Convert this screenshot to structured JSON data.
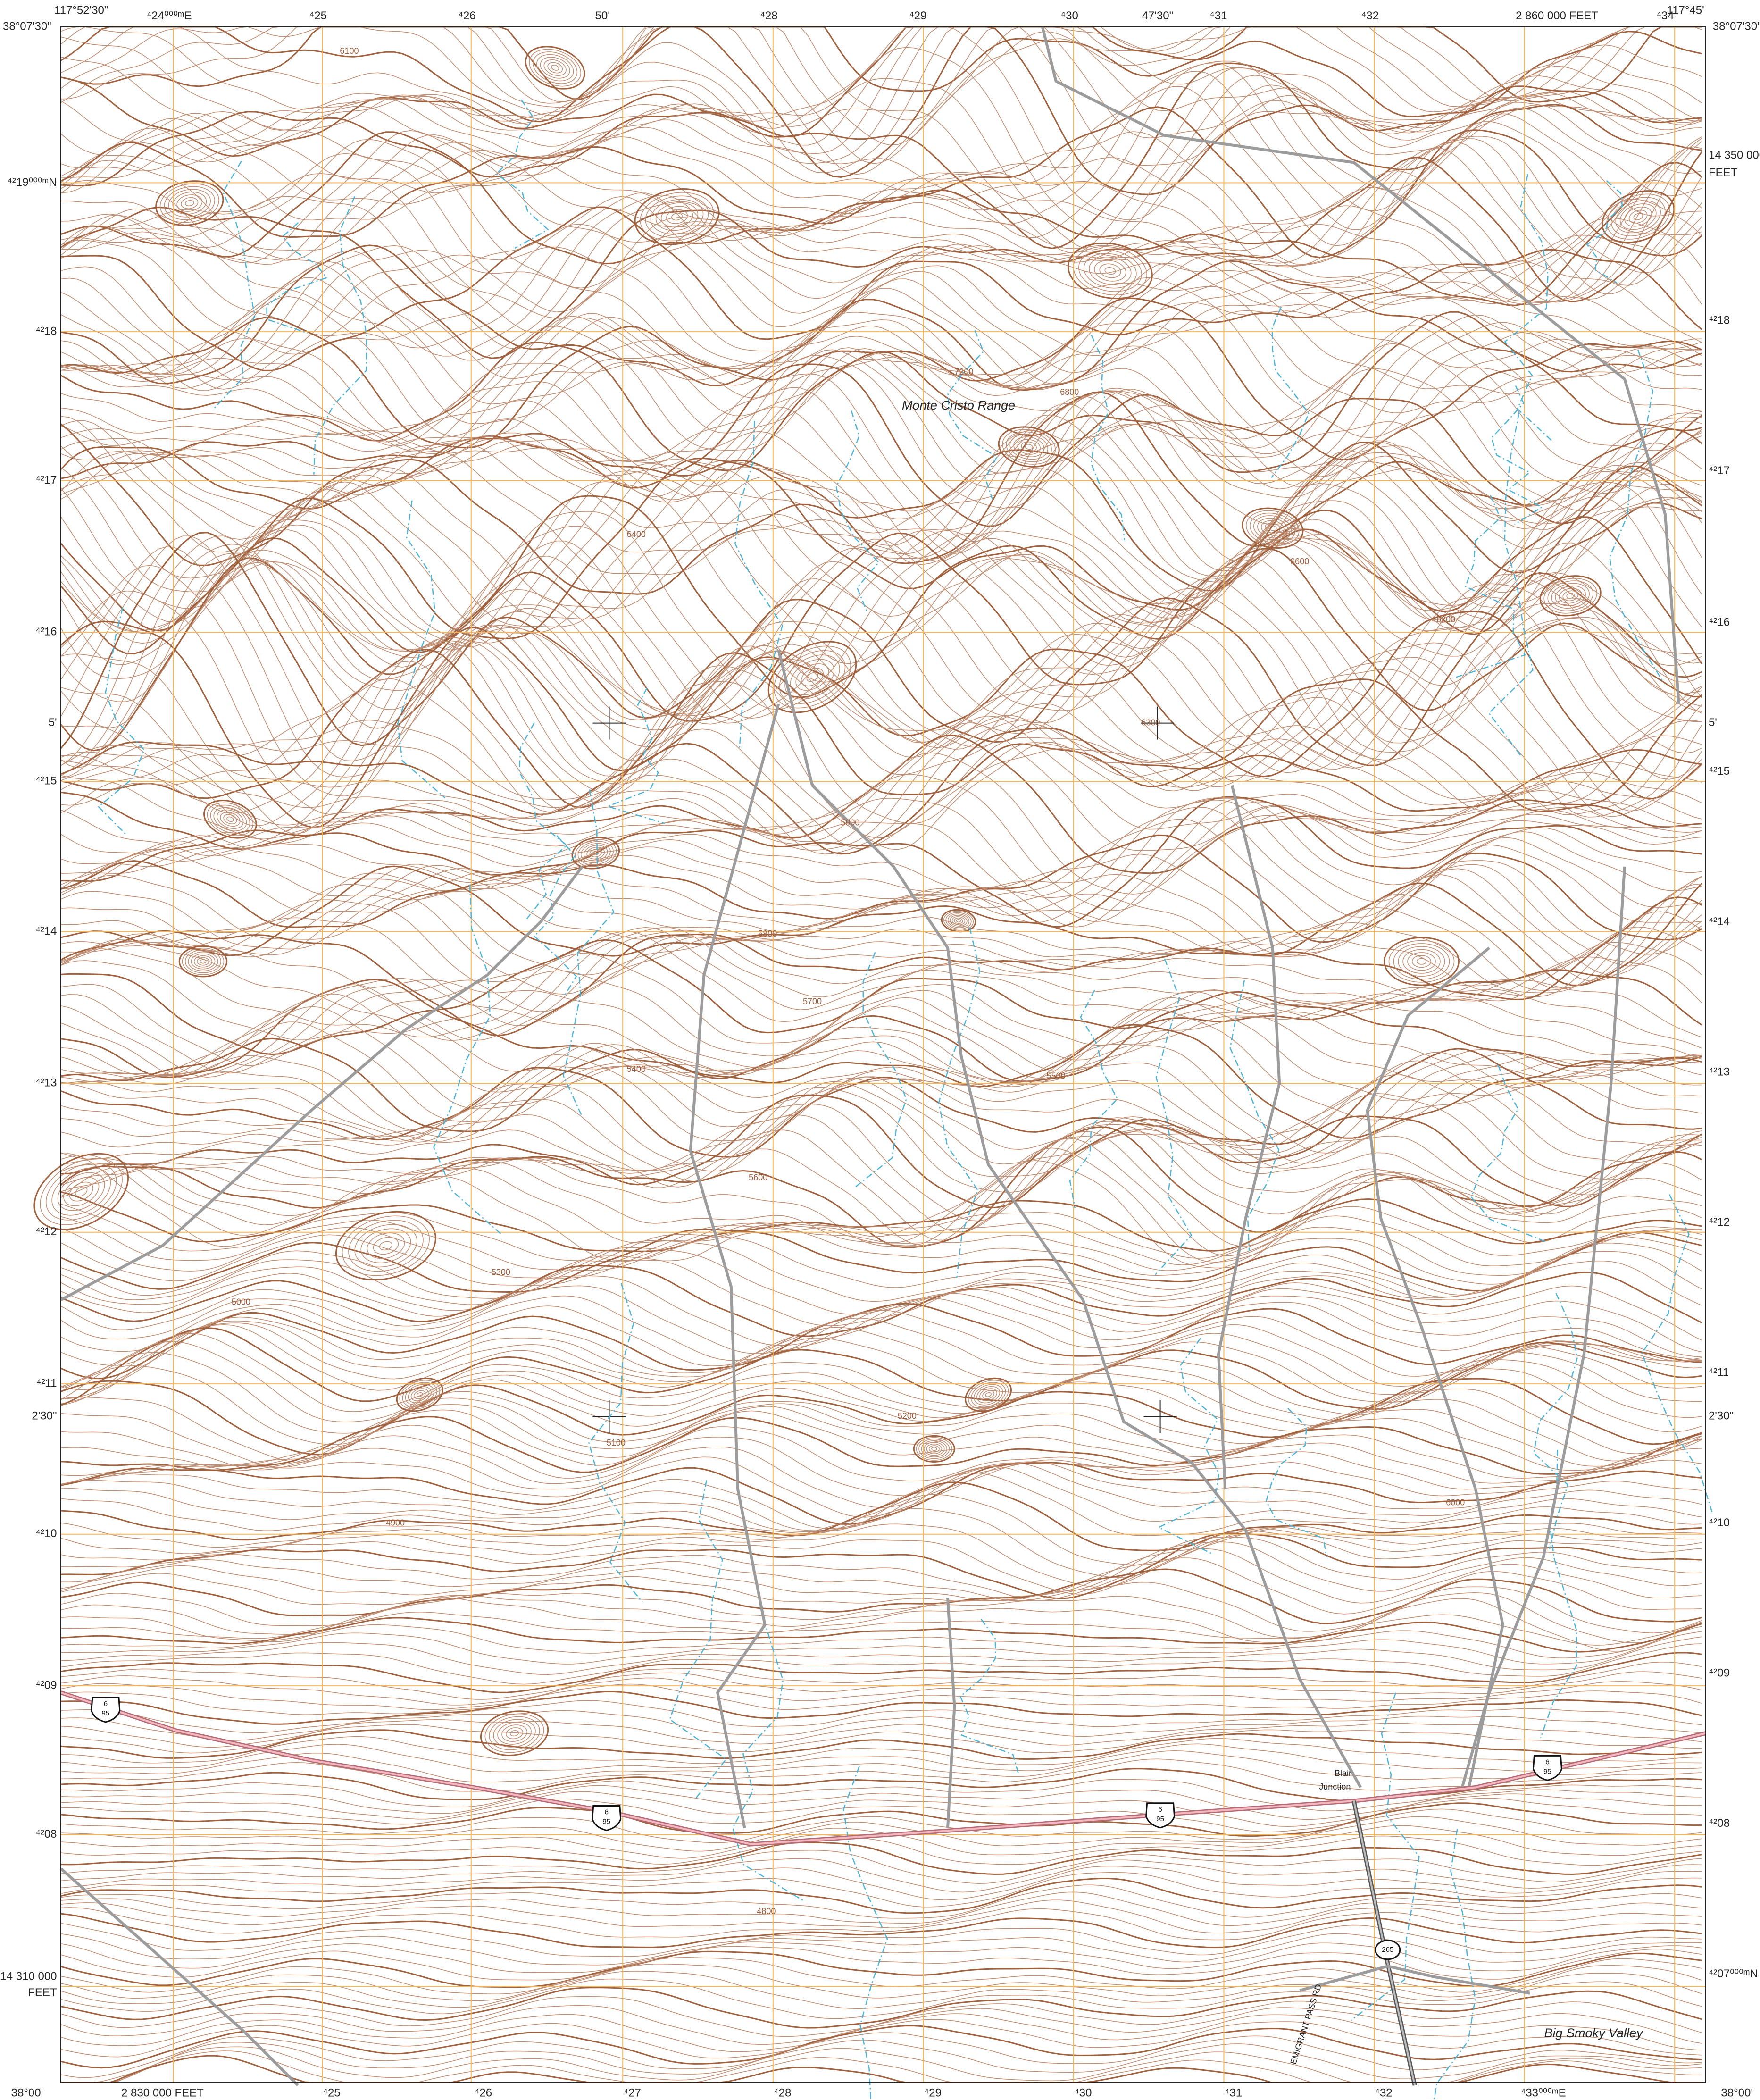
{
  "map": {
    "corners": {
      "nw_lon": "117°52'30\"",
      "nw_lat": "38°07'30\"",
      "ne_lon": "117°45'",
      "ne_lat": "38°07'30\"",
      "sw_lat": "38°00'",
      "se_lat": "38°00'"
    },
    "top_labels": [
      "⁴24⁰⁰⁰ᵐE",
      "⁴25",
      "⁴26",
      "50'",
      "⁴28",
      "⁴29",
      "⁴30",
      "47'30\"",
      "⁴31",
      "⁴32",
      "2 860 000 FEET",
      "⁴34"
    ],
    "left_labels": [
      "⁴²19⁰⁰⁰ᵐN",
      "⁴²18",
      "⁴²17",
      "⁴²16",
      "5'",
      "⁴²15",
      "⁴²14",
      "⁴²13",
      "⁴²12",
      "⁴²11",
      "2'30\"",
      "⁴²10",
      "⁴²09",
      "⁴²08",
      "14 310 000",
      "FEET"
    ],
    "right_labels": [
      "14 350 000",
      "FEET",
      "⁴²18",
      "⁴²17",
      "⁴²16",
      "5'",
      "⁴²15",
      "⁴²14",
      "⁴²13",
      "⁴²12",
      "⁴²11",
      "2'30\"",
      "⁴²10",
      "⁴²09",
      "⁴²08",
      "⁴²07⁰⁰⁰ᵐN"
    ],
    "bottom_labels": [
      "2 830 000 FEET",
      "⁴25",
      "⁴26",
      "⁴27",
      "⁴28",
      "⁴29",
      "⁴30",
      "⁴31",
      "⁴32",
      "⁴33⁰⁰⁰ᵐE"
    ],
    "places": [
      "Monte Cristo Range",
      "Big Smoky Valley",
      "EMIGRANT PASS RD"
    ],
    "town": [
      "Blair",
      "Junction"
    ],
    "shields": [
      {
        "top": "6",
        "bottom": "95"
      },
      {
        "top": "6",
        "bottom": "95"
      },
      {
        "top": "6",
        "bottom": "95"
      },
      {
        "top": "6",
        "bottom": "95"
      }
    ],
    "state_route": "265",
    "contour_labels": [
      "6100",
      "6400",
      "7200",
      "6800",
      "6600",
      "6200",
      "5800",
      "5700",
      "5400",
      "5900",
      "5600",
      "5300",
      "5200",
      "5100",
      "5000",
      "4900",
      "4800",
      "5500",
      "6300",
      "6000"
    ]
  }
}
